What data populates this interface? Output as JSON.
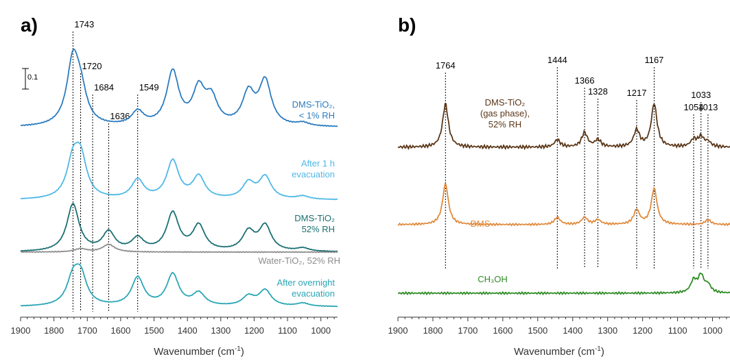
{
  "panels": [
    {
      "id": "a",
      "letter": "a)",
      "scale_bar_label": "0.1",
      "xlabel": "Wavenumber (cm⁻¹)",
      "xlabel_parts": {
        "base": "Wavenumber (cm",
        "sup": "-1",
        "close": ")"
      },
      "xlim": [
        1900,
        950
      ],
      "ticks": [
        1900,
        1800,
        1700,
        1600,
        1500,
        1400,
        1300,
        1200,
        1100,
        1000
      ],
      "peak_lines": [
        {
          "x": 1743,
          "label": "1743",
          "label_level": 0
        },
        {
          "x": 1720,
          "label": "1720",
          "label_level": 1
        },
        {
          "x": 1684,
          "label": "1684",
          "label_level": 2
        },
        {
          "x": 1636,
          "label": "1636",
          "label_level": 3
        },
        {
          "x": 1549,
          "label": "1549",
          "label_level": 2
        }
      ]
    },
    {
      "id": "b",
      "letter": "b)",
      "xlabel": "Wavenumber (cm⁻¹)",
      "xlabel_parts": {
        "base": "Wavenumber (cm",
        "sup": "-1",
        "close": ")"
      },
      "xlim": [
        1900,
        950
      ],
      "ticks": [
        1900,
        1800,
        1700,
        1600,
        1500,
        1400,
        1300,
        1200,
        1100,
        1000
      ],
      "peak_lines": [
        {
          "x": 1764,
          "label": "1764"
        },
        {
          "x": 1444,
          "label": "1444"
        },
        {
          "x": 1366,
          "label": "1366"
        },
        {
          "x": 1328,
          "label": "1328"
        },
        {
          "x": 1217,
          "label": "1217"
        },
        {
          "x": 1167,
          "label": "1167"
        },
        {
          "x": 1054,
          "label": "1054"
        },
        {
          "x": 1033,
          "label": "1033"
        },
        {
          "x": 1013,
          "label": "1013"
        }
      ]
    }
  ],
  "chart_data": [
    {
      "type": "line",
      "panel": "a",
      "xlabel": "Wavenumber (cm⁻¹)",
      "ylabel": "",
      "xlim": [
        1900,
        950
      ],
      "series": [
        {
          "name": "DMS-TiO₂, < 1% RH",
          "label_lines": [
            "DMS-TiO₂,",
            "< 1% RH"
          ],
          "color": "#2b7bbf",
          "peaks": [
            [
              1743,
              1.0
            ],
            [
              1720,
              0.45
            ],
            [
              1549,
              0.22
            ],
            [
              1444,
              0.85
            ],
            [
              1366,
              0.55
            ],
            [
              1328,
              0.4
            ],
            [
              1217,
              0.5
            ],
            [
              1167,
              0.7
            ],
            [
              1054,
              0.05
            ]
          ]
        },
        {
          "name": "After 1 h evacuation",
          "label_lines": [
            "After 1 h",
            "evacuation"
          ],
          "color": "#4fb8e6",
          "peaks": [
            [
              1743,
              0.55
            ],
            [
              1720,
              0.6
            ],
            [
              1549,
              0.3
            ],
            [
              1444,
              0.6
            ],
            [
              1366,
              0.35
            ],
            [
              1217,
              0.25
            ],
            [
              1167,
              0.35
            ],
            [
              1054,
              0.05
            ]
          ]
        },
        {
          "name": "DMS-TiO₂ 52% RH",
          "label_lines": [
            "DMS-TiO₂",
            "52% RH"
          ],
          "color": "#1a6f72",
          "peaks": [
            [
              1743,
              0.75
            ],
            [
              1636,
              0.3
            ],
            [
              1549,
              0.2
            ],
            [
              1444,
              0.6
            ],
            [
              1366,
              0.4
            ],
            [
              1217,
              0.3
            ],
            [
              1167,
              0.4
            ],
            [
              1054,
              0.05
            ]
          ]
        },
        {
          "name": "Water-TiO₂, 52% RH",
          "label_lines": [
            "Water-TiO₂, 52% RH"
          ],
          "color": "#8c8c8c",
          "peaks": [
            [
              1720,
              0.05
            ],
            [
              1636,
              0.12
            ]
          ]
        },
        {
          "name": "After overnight evacuation",
          "label_lines": [
            "After overnight",
            "evacuation"
          ],
          "color": "#2aa6b5",
          "peaks": [
            [
              1743,
              0.4
            ],
            [
              1720,
              0.45
            ],
            [
              1549,
              0.45
            ],
            [
              1444,
              0.5
            ],
            [
              1366,
              0.2
            ],
            [
              1217,
              0.15
            ],
            [
              1167,
              0.25
            ],
            [
              1054,
              0.05
            ]
          ]
        }
      ]
    },
    {
      "type": "line",
      "panel": "b",
      "xlabel": "Wavenumber (cm⁻¹)",
      "ylabel": "",
      "xlim": [
        1900,
        950
      ],
      "series": [
        {
          "name": "DMS-TiO₂ (gas phase), 52% RH",
          "label_lines": [
            "DMS-TiO₂",
            "(gas phase),",
            "52% RH"
          ],
          "color": "#5a3617",
          "peaks": [
            [
              1764,
              0.9
            ],
            [
              1444,
              0.15
            ],
            [
              1366,
              0.3
            ],
            [
              1328,
              0.15
            ],
            [
              1217,
              0.35
            ],
            [
              1167,
              0.9
            ],
            [
              1054,
              0.15
            ],
            [
              1033,
              0.2
            ],
            [
              1013,
              0.1
            ]
          ]
        },
        {
          "name": "DMS",
          "label_lines": [
            "DMS"
          ],
          "color": "#e08a3c",
          "peaks": [
            [
              1764,
              0.85
            ],
            [
              1444,
              0.15
            ],
            [
              1366,
              0.15
            ],
            [
              1328,
              0.1
            ],
            [
              1217,
              0.3
            ],
            [
              1167,
              0.75
            ],
            [
              1013,
              0.1
            ]
          ]
        },
        {
          "name": "CH₃OH",
          "label_lines": [
            "CH₃OH"
          ],
          "color": "#2e8b25",
          "peaks": [
            [
              1054,
              0.25
            ],
            [
              1033,
              0.35
            ],
            [
              1013,
              0.15
            ]
          ]
        }
      ]
    }
  ]
}
